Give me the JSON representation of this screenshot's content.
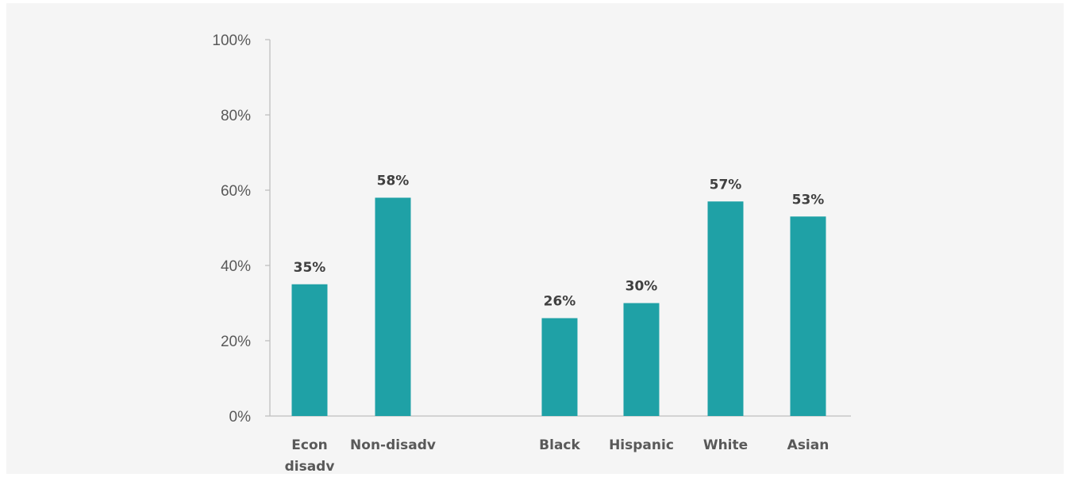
{
  "chart_data": {
    "type": "bar",
    "title": "",
    "xlabel": "",
    "ylabel": "",
    "ylim": [
      0,
      100
    ],
    "y_ticks": [
      0,
      20,
      40,
      60,
      80,
      100
    ],
    "y_tick_labels": [
      "0%",
      "20%",
      "40%",
      "60%",
      "80%",
      "100%"
    ],
    "grid": false,
    "legend": "none",
    "categories": [
      [
        "Econ",
        "disadv"
      ],
      [
        "Non-disadv"
      ],
      [],
      [
        "Black"
      ],
      [
        "Hispanic"
      ],
      [
        "White"
      ],
      [
        "Asian"
      ]
    ],
    "values": [
      35,
      58,
      null,
      26,
      30,
      57,
      53
    ],
    "data_labels": [
      "35%",
      "58%",
      "",
      "26%",
      "30%",
      "57%",
      "53%"
    ]
  },
  "colors": {
    "panel_background": "#f5f5f5",
    "bar": "#1fa1a6",
    "axis": "#bfbfbf"
  }
}
